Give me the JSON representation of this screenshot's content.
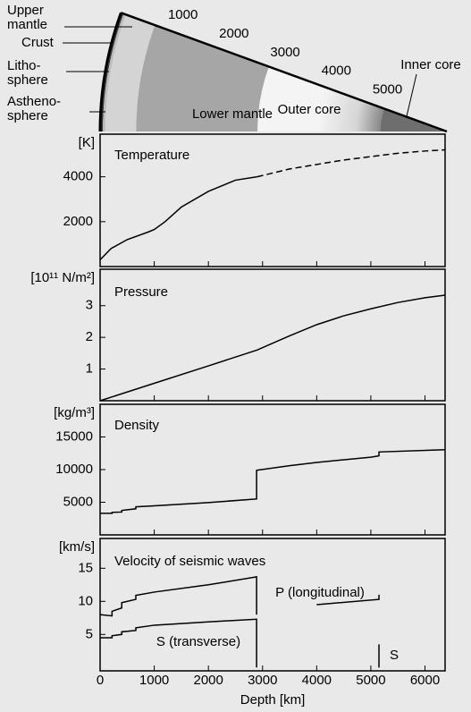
{
  "diagram": {
    "labels": {
      "upper_mantle": [
        "Upper",
        "mantle"
      ],
      "crust": "Crust",
      "lithosphere": [
        "Litho-",
        "sphere"
      ],
      "asthenosphere": [
        "Astheno-",
        "sphere"
      ],
      "lower_mantle": "Lower mantle",
      "outer_core": "Outer core",
      "inner_core": "Inner core"
    },
    "depth_marks": [
      1000,
      2000,
      3000,
      4000,
      5000
    ]
  },
  "chart_data": [
    {
      "type": "line",
      "title": "Temperature",
      "ylabel": "[K]",
      "x": [
        0,
        200,
        500,
        900,
        1000,
        1200,
        1500,
        2000,
        2500,
        2900,
        3500,
        4000,
        4500,
        5000,
        5500,
        6000,
        6371
      ],
      "series": [
        {
          "color": "#000000",
          "dash": false,
          "values": [
            300,
            800,
            1200,
            1550,
            1650,
            2000,
            2650,
            3350,
            3850,
            4000,
            null,
            null,
            null,
            null,
            null,
            null,
            null
          ]
        },
        {
          "color": "#000000",
          "dash": true,
          "values": [
            null,
            null,
            null,
            null,
            null,
            null,
            null,
            null,
            null,
            4000,
            4350,
            4550,
            4750,
            4900,
            5050,
            5150,
            5200
          ]
        }
      ],
      "xlim": [
        0,
        6371
      ],
      "ylim": [
        0,
        5900
      ],
      "yticks": [
        2000,
        4000
      ]
    },
    {
      "type": "line",
      "title": "Pressure",
      "ylabel": "[10¹¹ N/m²]",
      "x": [
        0,
        1000,
        2000,
        2900,
        3500,
        4000,
        4500,
        5000,
        5500,
        6000,
        6371
      ],
      "series": [
        {
          "color": "#000000",
          "dash": false,
          "values": [
            0,
            0.55,
            1.1,
            1.6,
            2.05,
            2.4,
            2.68,
            2.9,
            3.1,
            3.25,
            3.33
          ]
        }
      ],
      "xlim": [
        0,
        6371
      ],
      "ylim": [
        0,
        4.15
      ],
      "yticks": [
        1,
        2,
        3
      ]
    },
    {
      "type": "line",
      "title": "Density",
      "ylabel": "[kg/m³]",
      "x": [
        0,
        220,
        220,
        400,
        400,
        660,
        660,
        1000,
        2000,
        2890,
        2890,
        3500,
        4000,
        5000,
        5150,
        5150,
        6371
      ],
      "series": [
        {
          "color": "#000000",
          "dash": false,
          "values": [
            3300,
            3300,
            3450,
            3500,
            3750,
            4000,
            4300,
            4450,
            4950,
            5500,
            9900,
            10600,
            11100,
            11900,
            12100,
            12700,
            13050
          ]
        }
      ],
      "xlim": [
        0,
        6371
      ],
      "ylim": [
        0,
        20000
      ],
      "yticks": [
        5000,
        10000,
        15000
      ]
    },
    {
      "type": "line",
      "title": "Velocity of seismic waves",
      "ylabel": "[km/s]",
      "xlabel": "Depth [km]",
      "annotations": [
        "P (longitudinal)",
        "S (transverse)",
        "S"
      ],
      "x": [
        0,
        220,
        220,
        400,
        400,
        660,
        660,
        1000,
        2000,
        2890,
        2890,
        2890,
        4000,
        5150,
        5150,
        5150,
        6371
      ],
      "series": [
        {
          "color": "#000000",
          "dash": false,
          "values": [
            8,
            7.8,
            8.5,
            9,
            9.8,
            10.3,
            10.9,
            11.4,
            12.5,
            13.7,
            8,
            null,
            9.5,
            10.3,
            11,
            null,
            11.3
          ]
        },
        {
          "color": "#000000",
          "dash": false,
          "values": [
            4.5,
            4.5,
            4.8,
            5,
            5.4,
            5.6,
            6,
            6.4,
            6.9,
            7.3,
            0,
            null,
            null,
            0,
            3.5,
            null,
            3.7
          ]
        }
      ],
      "xlim": [
        0,
        6371
      ],
      "ylim": [
        -0.5,
        19.5
      ],
      "yticks": [
        5,
        10,
        15
      ],
      "xticks": [
        0,
        1000,
        2000,
        3000,
        4000,
        5000,
        6000
      ]
    }
  ]
}
